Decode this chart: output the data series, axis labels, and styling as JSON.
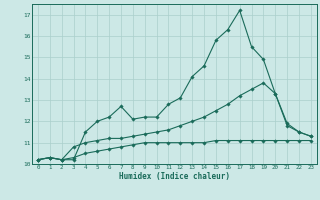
{
  "xlabel": "Humidex (Indice chaleur)",
  "bg_color": "#cce8e6",
  "grid_color": "#aacfcc",
  "line_color": "#1a6b5a",
  "xlim": [
    -0.5,
    23.5
  ],
  "ylim": [
    10.0,
    17.5
  ],
  "yticks": [
    10,
    11,
    12,
    13,
    14,
    15,
    16,
    17
  ],
  "xticks": [
    0,
    1,
    2,
    3,
    4,
    5,
    6,
    7,
    8,
    9,
    10,
    11,
    12,
    13,
    14,
    15,
    16,
    17,
    18,
    19,
    20,
    21,
    22,
    23
  ],
  "line1_x": [
    0,
    1,
    2,
    3,
    4,
    5,
    6,
    7,
    8,
    9,
    10,
    11,
    12,
    13,
    14,
    15,
    16,
    17,
    18,
    19,
    20,
    21,
    22,
    23
  ],
  "line1_y": [
    10.2,
    10.3,
    10.2,
    10.2,
    11.5,
    12.0,
    12.2,
    12.7,
    12.1,
    12.2,
    12.2,
    12.8,
    13.1,
    14.1,
    14.6,
    15.8,
    16.3,
    17.2,
    15.5,
    14.9,
    13.3,
    11.8,
    11.5,
    11.3
  ],
  "line2_x": [
    0,
    1,
    2,
    3,
    4,
    5,
    6,
    7,
    8,
    9,
    10,
    11,
    12,
    13,
    14,
    15,
    16,
    17,
    18,
    19,
    20,
    21,
    22,
    23
  ],
  "line2_y": [
    10.2,
    10.3,
    10.2,
    10.8,
    11.0,
    11.1,
    11.2,
    11.2,
    11.3,
    11.4,
    11.5,
    11.6,
    11.8,
    12.0,
    12.2,
    12.5,
    12.8,
    13.2,
    13.5,
    13.8,
    13.3,
    11.9,
    11.5,
    11.3
  ],
  "line3_x": [
    0,
    1,
    2,
    3,
    4,
    5,
    6,
    7,
    8,
    9,
    10,
    11,
    12,
    13,
    14,
    15,
    16,
    17,
    18,
    19,
    20,
    21,
    22,
    23
  ],
  "line3_y": [
    10.2,
    10.3,
    10.2,
    10.3,
    10.5,
    10.6,
    10.7,
    10.8,
    10.9,
    11.0,
    11.0,
    11.0,
    11.0,
    11.0,
    11.0,
    11.1,
    11.1,
    11.1,
    11.1,
    11.1,
    11.1,
    11.1,
    11.1,
    11.1
  ]
}
